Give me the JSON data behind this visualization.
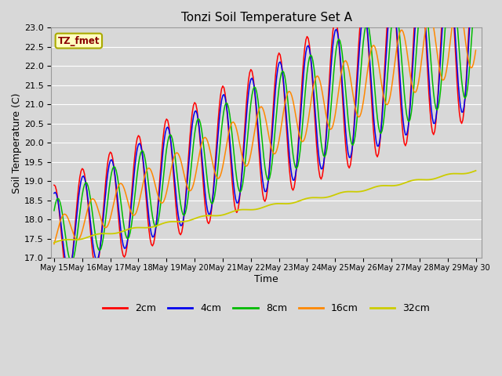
{
  "title": "Tonzi Soil Temperature Set A",
  "xlabel": "Time",
  "ylabel": "Soil Temperature (C)",
  "ylim": [
    17.0,
    23.0
  ],
  "yticks": [
    17.0,
    17.5,
    18.0,
    18.5,
    19.0,
    19.5,
    20.0,
    20.5,
    21.0,
    21.5,
    22.0,
    22.5,
    23.0
  ],
  "annotation_text": "TZ_fmet",
  "annotation_color": "#8B0000",
  "annotation_bg": "#FFFFC0",
  "annotation_border": "#AAAA00",
  "colors": {
    "2cm": "#FF0000",
    "4cm": "#0000EE",
    "8cm": "#00BB00",
    "16cm": "#FF8800",
    "32cm": "#CCCC00"
  },
  "background_color": "#D8D8D8",
  "plot_bg": "#D8D8D8",
  "grid_color": "#FFFFFF",
  "x_tick_labels": [
    "May 15",
    "May 16",
    "May 17",
    "May 18",
    "May 19",
    "May 20",
    "May 21",
    "May 22",
    "May 23",
    "May 24",
    "May 25",
    "May 26",
    "May 27",
    "May 28",
    "May 29",
    "May 30"
  ]
}
